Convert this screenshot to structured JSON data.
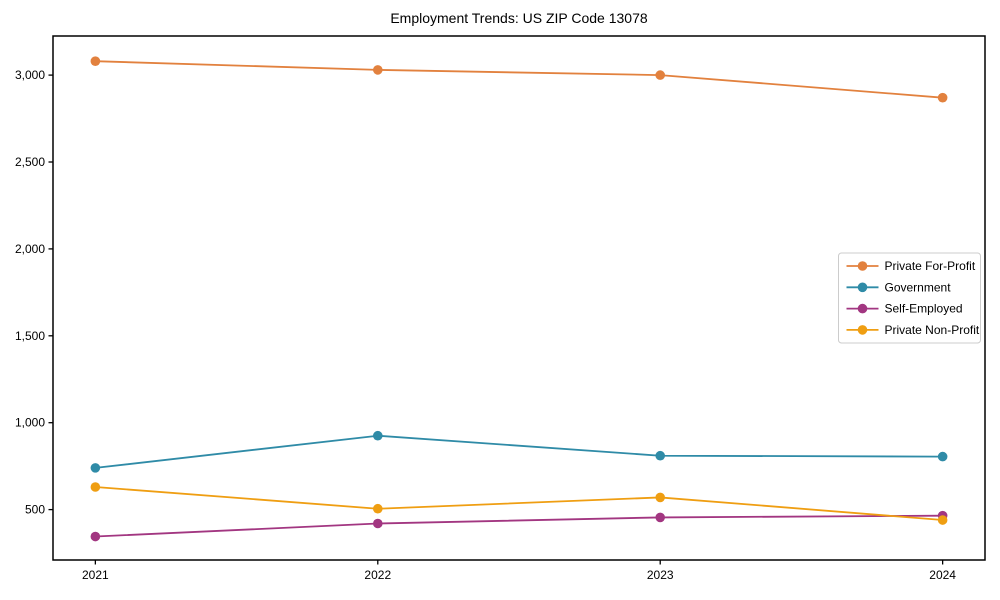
{
  "chart_data": {
    "type": "line",
    "title": "Employment Trends: US ZIP Code 13078",
    "xlabel": "",
    "ylabel": "",
    "x_categories": [
      "2021",
      "2022",
      "2023",
      "2024"
    ],
    "series": [
      {
        "name": "Private For-Profit",
        "color": "#e2813e",
        "values": [
          3080,
          3030,
          3000,
          2870
        ]
      },
      {
        "name": "Government",
        "color": "#2f8ba7",
        "values": [
          740,
          925,
          810,
          805
        ]
      },
      {
        "name": "Self-Employed",
        "color": "#a23681",
        "values": [
          345,
          420,
          455,
          465
        ]
      },
      {
        "name": "Private Non-Profit",
        "color": "#ef9e12",
        "values": [
          630,
          505,
          570,
          440
        ]
      }
    ],
    "ylim": [
      210,
      3225
    ],
    "ytick_values": [
      500,
      1000,
      1500,
      2000,
      2500,
      3000
    ],
    "ytick_labels": [
      "500",
      "1,000",
      "1,500",
      "2,000",
      "2,500",
      "3,000"
    ],
    "grid": false,
    "legend_position": "center right",
    "marker": "o",
    "frame_color": "#000000",
    "legend_border_color": "#cccccc",
    "background_color": "#ffffff"
  }
}
